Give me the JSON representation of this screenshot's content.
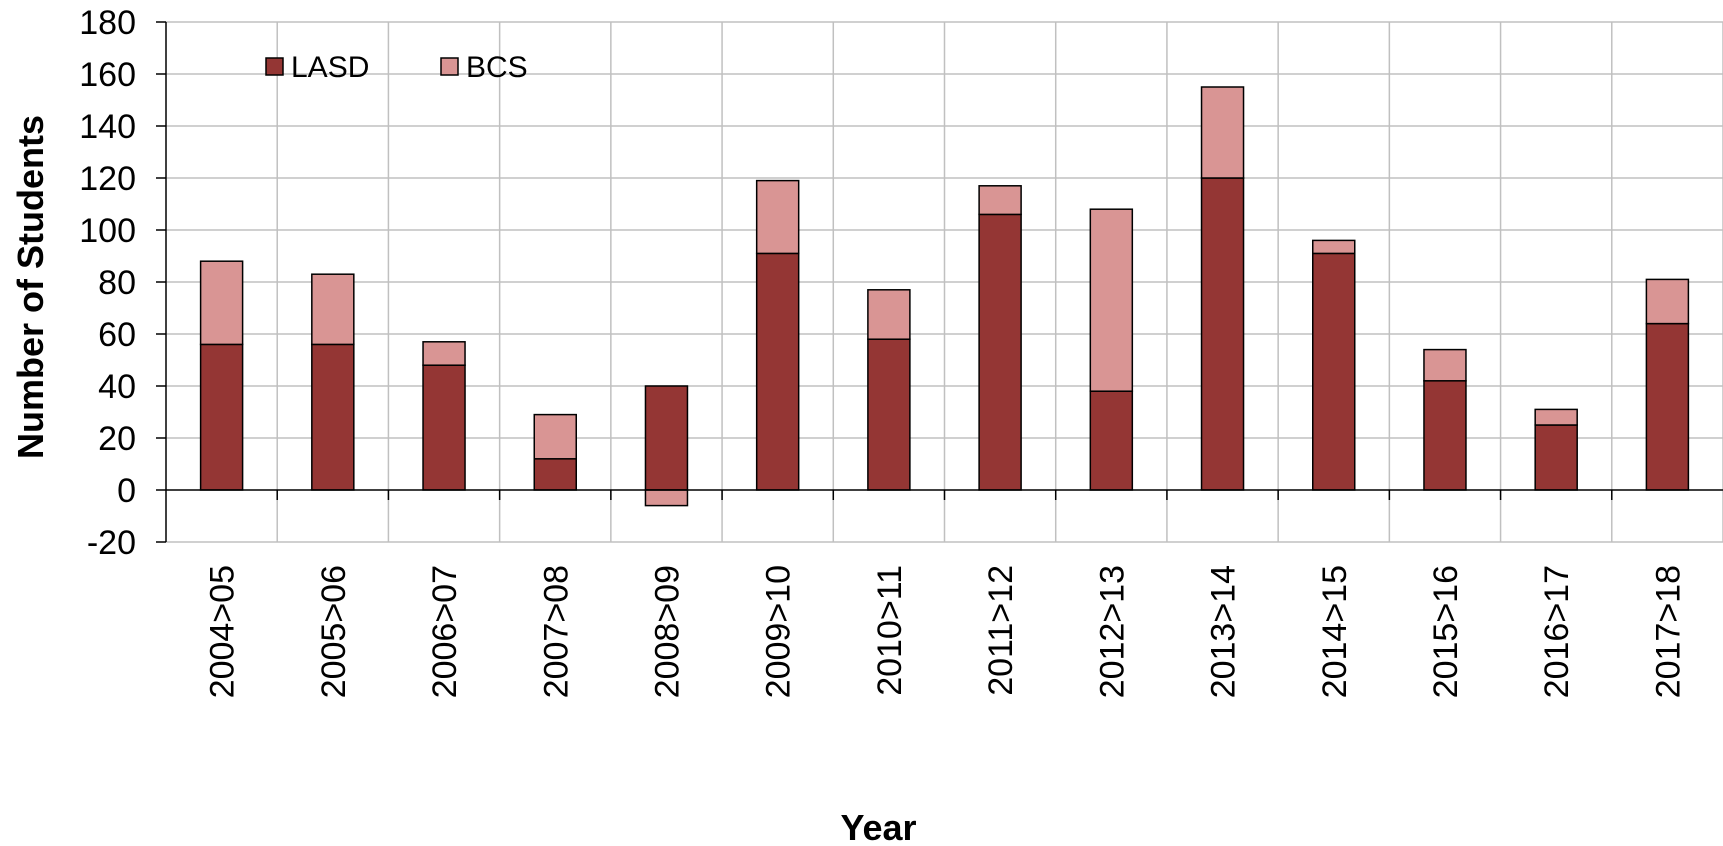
{
  "chart_data": {
    "type": "bar",
    "stacked": true,
    "categories": [
      "2004>05",
      "2005>06",
      "2006>07",
      "2007>08",
      "2008>09",
      "2009>10",
      "2010>11",
      "2011>12",
      "2012>13",
      "2013>14",
      "2014>15",
      "2015>16",
      "2016>17",
      "2017>18"
    ],
    "series": [
      {
        "name": "LASD",
        "color": "#943634",
        "values": [
          56,
          56,
          48,
          12,
          40,
          91,
          58,
          106,
          38,
          120,
          91,
          42,
          25,
          64
        ]
      },
      {
        "name": "BCS",
        "color": "#d99594",
        "values": [
          32,
          27,
          9,
          17,
          -6,
          28,
          19,
          11,
          70,
          35,
          5,
          12,
          6,
          17
        ]
      }
    ],
    "title": "",
    "xlabel": "Year",
    "ylabel": "Number of Students",
    "ylim": [
      -20,
      180
    ],
    "yticks": [
      -20,
      0,
      20,
      40,
      60,
      80,
      100,
      120,
      140,
      160,
      180
    ],
    "grid": true,
    "legend_position": "top-left"
  }
}
